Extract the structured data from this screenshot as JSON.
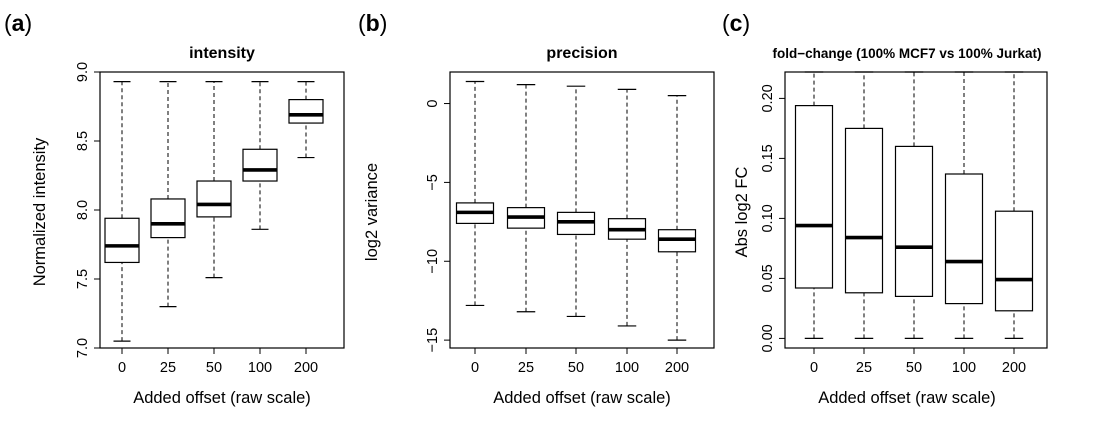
{
  "panels": [
    {
      "pre": "(",
      "bold": "a",
      "post": ")"
    },
    {
      "pre": "(",
      "bold": "b",
      "post": ")"
    },
    {
      "pre": "(",
      "bold": "c",
      "post": ")"
    }
  ],
  "chart_data": [
    {
      "type": "box",
      "title": "intensity",
      "xlabel": "Added offset (raw scale)",
      "ylabel": "Normalized intensity",
      "categories": [
        "0",
        "25",
        "50",
        "100",
        "200"
      ],
      "ylim": [
        7.0,
        9.0
      ],
      "yticks": [
        7.0,
        7.5,
        8.0,
        8.5,
        9.0
      ],
      "ytick_labels": [
        "7.0",
        "7.5",
        "8.0",
        "8.5",
        "9.0"
      ],
      "boxes": [
        {
          "min": 7.05,
          "q1": 7.62,
          "median": 7.74,
          "q3": 7.94,
          "max": 8.93
        },
        {
          "min": 7.3,
          "q1": 7.8,
          "median": 7.9,
          "q3": 8.08,
          "max": 8.93
        },
        {
          "min": 7.51,
          "q1": 7.95,
          "median": 8.04,
          "q3": 8.21,
          "max": 8.93
        },
        {
          "min": 7.86,
          "q1": 8.21,
          "median": 8.29,
          "q3": 8.44,
          "max": 8.93
        },
        {
          "min": 8.38,
          "q1": 8.63,
          "median": 8.69,
          "q3": 8.8,
          "max": 8.93
        }
      ]
    },
    {
      "type": "box",
      "title": "precision",
      "xlabel": "Added offset (raw scale)",
      "ylabel": "log2 variance",
      "categories": [
        "0",
        "25",
        "50",
        "100",
        "200"
      ],
      "ylim": [
        -15.5,
        2.0
      ],
      "yticks": [
        -15,
        -10,
        -5,
        0
      ],
      "ytick_labels": [
        "−15",
        "−10",
        "−5",
        "0"
      ],
      "boxes": [
        {
          "min": -12.8,
          "q1": -7.6,
          "median": -6.9,
          "q3": -6.3,
          "max": 1.4
        },
        {
          "min": -13.2,
          "q1": -7.9,
          "median": -7.2,
          "q3": -6.6,
          "max": 1.2
        },
        {
          "min": -13.5,
          "q1": -8.3,
          "median": -7.5,
          "q3": -6.9,
          "max": 1.1
        },
        {
          "min": -14.1,
          "q1": -8.6,
          "median": -8.0,
          "q3": -7.3,
          "max": 0.9
        },
        {
          "min": -15.0,
          "q1": -9.4,
          "median": -8.6,
          "q3": -8.0,
          "max": 0.5
        }
      ]
    },
    {
      "type": "box",
      "title": "fold−change (100% MCF7 vs 100% Jurkat)",
      "xlabel": "Added offset (raw scale)",
      "ylabel": "Abs log2 FC",
      "categories": [
        "0",
        "25",
        "50",
        "100",
        "200"
      ],
      "ylim": [
        -0.008,
        0.222
      ],
      "yticks": [
        0.0,
        0.05,
        0.1,
        0.15,
        0.2
      ],
      "ytick_labels": [
        "0.00",
        "0.05",
        "0.10",
        "0.15",
        "0.20"
      ],
      "boxes": [
        {
          "min": 0.0,
          "q1": 0.042,
          "median": 0.094,
          "q3": 0.194,
          "max": 0.222
        },
        {
          "min": 0.0,
          "q1": 0.038,
          "median": 0.084,
          "q3": 0.175,
          "max": 0.222
        },
        {
          "min": 0.0,
          "q1": 0.035,
          "median": 0.076,
          "q3": 0.16,
          "max": 0.222
        },
        {
          "min": 0.0,
          "q1": 0.029,
          "median": 0.064,
          "q3": 0.137,
          "max": 0.222
        },
        {
          "min": 0.0,
          "q1": 0.023,
          "median": 0.049,
          "q3": 0.106,
          "max": 0.222
        }
      ]
    }
  ]
}
